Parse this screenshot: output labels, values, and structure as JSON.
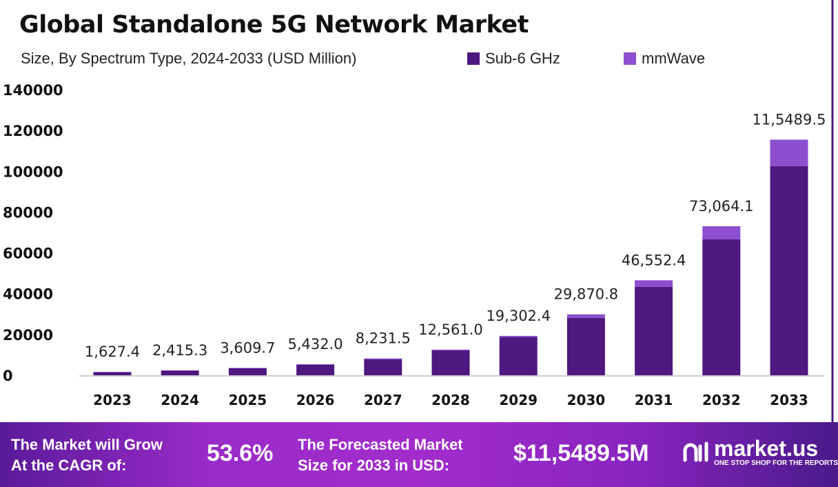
{
  "title": "Global Standalone 5G Network Market",
  "subtitle": "Size, By Spectrum Type, 2024-2033 (USD Million)",
  "colors": {
    "sub6": "#4f1780",
    "mmwave": "#8d4fcf"
  },
  "chart_data": {
    "type": "bar",
    "stacked": true,
    "title": "Global Standalone 5G Network Market",
    "subtitle": "Size, By Spectrum Type, 2024-2033 (USD Million)",
    "categories": [
      "2023",
      "2024",
      "2025",
      "2026",
      "2027",
      "2028",
      "2029",
      "2030",
      "2031",
      "2032",
      "2033"
    ],
    "series": [
      {
        "name": "Sub-6 GHz",
        "values": [
          1550,
          2300,
          3400,
          5100,
          7800,
          12200,
          18600,
          28100,
          43300,
          66600,
          102500
        ]
      },
      {
        "name": "mmWave",
        "values": [
          77,
          115,
          210,
          332,
          432,
          361,
          702,
          1771,
          3252,
          6464,
          12990
        ]
      }
    ],
    "data_labels": [
      "1,627.4",
      "2,415.3",
      "3,609.7",
      "5,432.0",
      "8,231.5",
      "12,561.0",
      "19,302.4",
      "29,870.8",
      "46,552.4",
      "73,064.1",
      "11,5489.5"
    ],
    "yticks": [
      "0",
      "20000",
      "40000",
      "60000",
      "80000",
      "100000",
      "120000",
      "140000"
    ],
    "ylim": [
      0,
      140000
    ],
    "legend": "top-right",
    "grid": false
  },
  "banner": {
    "cagr_label_1": "The Market will Grow",
    "cagr_label_2": "At the CAGR of:",
    "cagr_value": "53.6%",
    "forecast_label_1": "The Forecasted Market",
    "forecast_label_2": "Size for 2033 in USD:",
    "forecast_value": "$11,5489.5M",
    "logo_name": "market.us",
    "logo_tagline": "ONE STOP SHOP FOR THE REPORTS"
  }
}
